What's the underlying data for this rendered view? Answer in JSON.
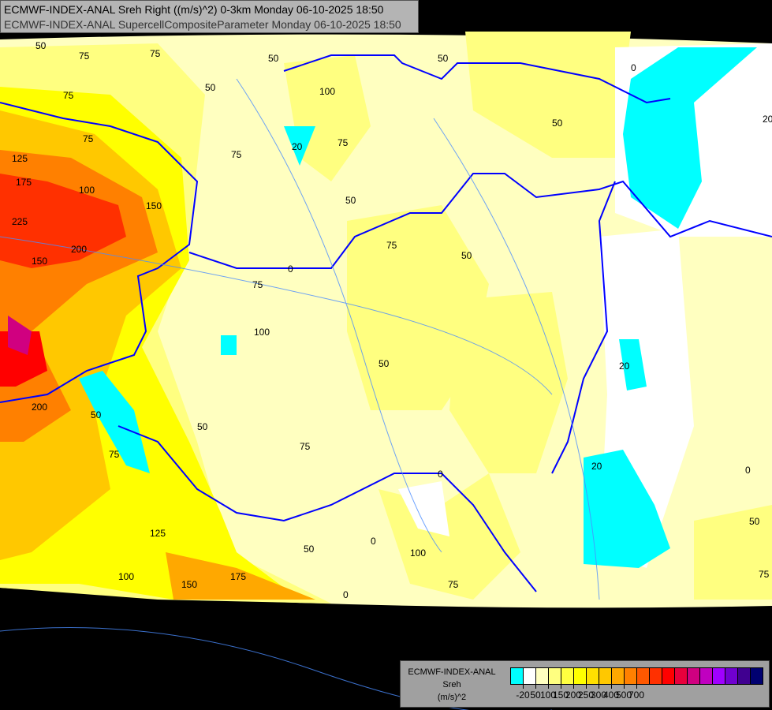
{
  "title": {
    "line1": "ECMWF-INDEX-ANAL Sreh Right ((m/s)^2) 0-3km Monday 06-10-2025 18:50",
    "line2": "ECMWF-INDEX-ANAL SupercellCompositeParameter Monday 06-10-2025 18:50"
  },
  "legend": {
    "model": "ECMWF-INDEX-ANAL",
    "variable": "Sreh",
    "unit": "(m/s)^2",
    "colors": [
      "#00ffff",
      "#ffffff",
      "#ffffc0",
      "#ffff80",
      "#ffff40",
      "#ffff00",
      "#ffe000",
      "#ffc800",
      "#ffa800",
      "#ff8000",
      "#ff5800",
      "#ff3000",
      "#ff0000",
      "#e8003c",
      "#d00080",
      "#c000c0",
      "#a000ff",
      "#7000d0",
      "#400090",
      "#000070"
    ],
    "labels": [
      "-20",
      "50",
      "100",
      "150",
      "200",
      "250",
      "300",
      "400",
      "500",
      "700"
    ]
  },
  "contour_labels": [
    "50",
    "75",
    "50",
    "50",
    "75",
    "100",
    "125",
    "175",
    "100",
    "150",
    "225",
    "200",
    "150",
    "75",
    "20",
    "75",
    "50",
    "75",
    "50",
    "50",
    "50",
    "75",
    "100",
    "75",
    "75",
    "50",
    "0",
    "20",
    "0",
    "20",
    "20",
    "0",
    "0",
    "50",
    "75",
    "125",
    "100",
    "150",
    "175",
    "50",
    "0",
    "100",
    "75",
    "0",
    "50",
    "75",
    "200",
    "50",
    "75"
  ]
}
